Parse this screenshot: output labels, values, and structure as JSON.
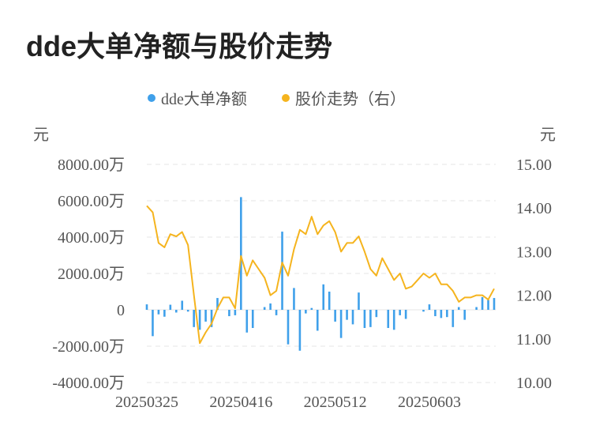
{
  "page_title": "dde大单净额与股价走势",
  "legend": {
    "items": [
      {
        "label": "dde大单净额",
        "color": "#3fa0ea"
      },
      {
        "label": "股价走势（右）",
        "color": "#f5b41e"
      }
    ]
  },
  "axes": {
    "left_unit": "元",
    "right_unit": "元",
    "left_ticks": [
      "8000.00万",
      "6000.00万",
      "4000.00万",
      "2000.00万",
      "0",
      "-2000.00万",
      "-4000.00万"
    ],
    "right_ticks": [
      "15.00",
      "14.00",
      "13.00",
      "12.00",
      "11.00",
      "10.00"
    ],
    "x_ticks": [
      {
        "index": 0,
        "label": "20250325"
      },
      {
        "index": 16,
        "label": "20250416"
      },
      {
        "index": 32,
        "label": "20250512"
      },
      {
        "index": 48,
        "label": "20250603"
      }
    ]
  },
  "chart_data": {
    "type": "bar+line",
    "title": "dde大单净额与股价走势",
    "grid": true,
    "legend_position": "top",
    "left_axis": {
      "unit": "元",
      "ylim": [
        -4000,
        8000
      ],
      "tick_suffix": "万"
    },
    "right_axis": {
      "unit": "元",
      "ylim": [
        10,
        15
      ]
    },
    "series": [
      {
        "name": "dde大单净额",
        "type": "bar",
        "axis": "left",
        "color": "#3fa0ea",
        "values": [
          300,
          -1450,
          -250,
          -380,
          280,
          -150,
          500,
          -100,
          -950,
          -1100,
          -650,
          -950,
          650,
          0,
          -350,
          -300,
          6200,
          -1250,
          -1000,
          0,
          150,
          350,
          -300,
          4300,
          -1900,
          1200,
          -2250,
          -200,
          100,
          -1150,
          1400,
          1000,
          -650,
          -1550,
          -550,
          -800,
          950,
          -1000,
          -950,
          -400,
          0,
          -1000,
          -1100,
          -300,
          -500,
          0,
          0,
          -100,
          300,
          -350,
          -450,
          -400,
          -950,
          150,
          -550,
          0,
          150,
          700,
          550,
          650
        ]
      },
      {
        "name": "股价走势（右）",
        "type": "line",
        "axis": "right",
        "color": "#f5b41e",
        "values": [
          14.05,
          13.9,
          13.2,
          13.1,
          13.4,
          13.35,
          13.45,
          13.15,
          12.0,
          10.9,
          11.15,
          11.35,
          11.7,
          11.95,
          11.95,
          11.7,
          12.9,
          12.45,
          12.8,
          12.6,
          12.4,
          12.0,
          12.1,
          12.75,
          12.45,
          13.05,
          13.5,
          13.4,
          13.8,
          13.4,
          13.6,
          13.7,
          13.45,
          13.0,
          13.2,
          13.2,
          13.35,
          13.0,
          12.6,
          12.45,
          12.85,
          12.6,
          12.35,
          12.5,
          12.15,
          12.2,
          12.35,
          12.5,
          12.4,
          12.5,
          12.25,
          12.25,
          12.1,
          11.85,
          11.95,
          11.95,
          12.0,
          12.0,
          11.9,
          12.15
        ]
      }
    ]
  }
}
